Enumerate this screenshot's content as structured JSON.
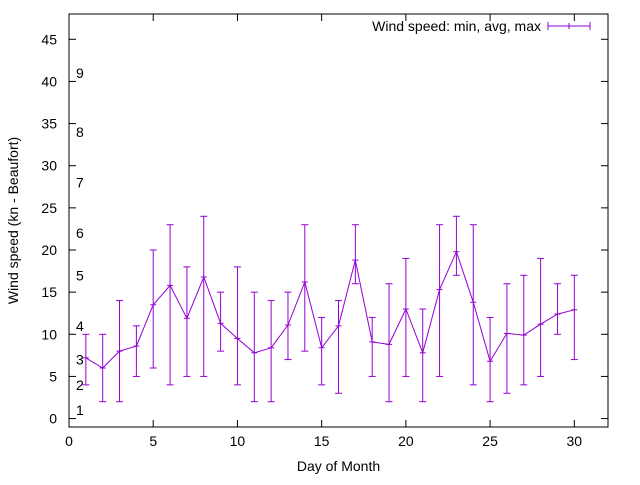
{
  "chart_data": {
    "type": "line",
    "title": "",
    "xlabel": "Day of Month",
    "ylabel": "Wind speed (kn - Beaufort)",
    "xlim": [
      0,
      32
    ],
    "ylim": [
      -1,
      48
    ],
    "x_ticks": [
      0,
      5,
      10,
      15,
      20,
      25,
      30
    ],
    "y_ticks": [
      0,
      5,
      10,
      15,
      20,
      25,
      30,
      35,
      40,
      45
    ],
    "grid": false,
    "legend_position": "top-right",
    "beaufort_labels": [
      {
        "label": "1",
        "y": 1
      },
      {
        "label": "2",
        "y": 4
      },
      {
        "label": "3",
        "y": 7
      },
      {
        "label": "4",
        "y": 11
      },
      {
        "label": "5",
        "y": 17
      },
      {
        "label": "6",
        "y": 22
      },
      {
        "label": "7",
        "y": 28
      },
      {
        "label": "8",
        "y": 34
      },
      {
        "label": "9",
        "y": 41
      }
    ],
    "series": [
      {
        "name": "Wind speed: min, avg, max",
        "color": "#9400d3",
        "x": [
          1,
          2,
          3,
          4,
          5,
          6,
          7,
          8,
          9,
          10,
          11,
          12,
          13,
          14,
          15,
          16,
          17,
          18,
          19,
          20,
          21,
          22,
          23,
          24,
          25,
          26,
          27,
          28,
          29,
          30
        ],
        "avg": [
          7.2,
          6.0,
          8.0,
          8.6,
          13.5,
          15.8,
          11.9,
          16.8,
          11.3,
          9.5,
          7.8,
          8.4,
          11.1,
          16.2,
          8.4,
          11.0,
          18.8,
          9.1,
          8.8,
          13.0,
          7.8,
          15.3,
          19.8,
          13.8,
          6.8,
          10.1,
          9.9,
          11.2,
          12.4,
          12.9
        ],
        "min": [
          4,
          2,
          2,
          5,
          6,
          4,
          5,
          5,
          8,
          4,
          2,
          2,
          7,
          8,
          4,
          3,
          16,
          5,
          2,
          5,
          2,
          5,
          17,
          4,
          2,
          3,
          4,
          5,
          10,
          7
        ],
        "max": [
          10,
          10,
          14,
          11,
          20,
          23,
          18,
          24,
          15,
          18,
          15,
          14,
          15,
          23,
          12,
          14,
          23,
          12,
          16,
          19,
          13,
          23,
          24,
          23,
          12,
          16,
          17,
          19,
          16,
          17
        ]
      }
    ]
  }
}
